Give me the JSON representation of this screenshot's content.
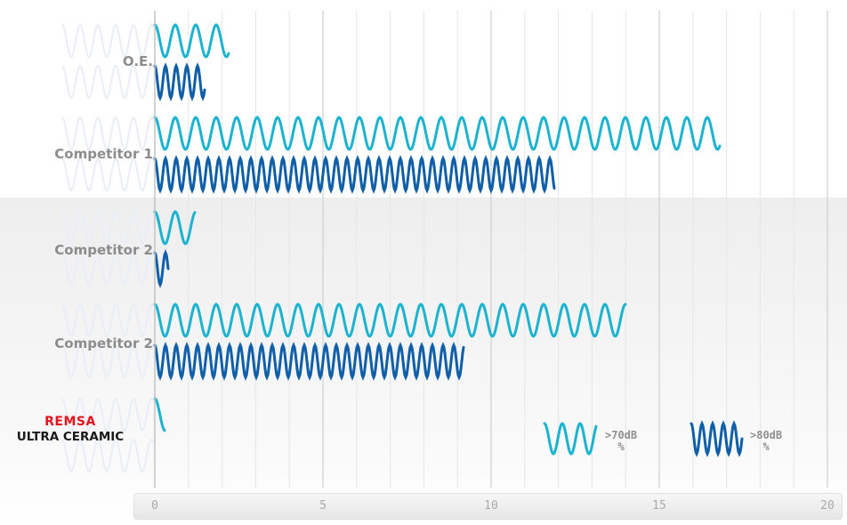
{
  "chart_data": {
    "type": "bar",
    "categories": [
      "O.E.",
      "Competitor 1",
      "Competitor 2",
      "Competitor 2",
      "REMSA ULTRA CERAMIC"
    ],
    "category_labels": [
      "O.E.",
      "Competitor 1",
      "Competitor 2",
      "Competitor 2"
    ],
    "brand": {
      "line1": "REMSA",
      "line2": "ULTRA CERAMIC"
    },
    "series": [
      {
        "name": ">70dB %",
        "color": "#1bb3cf",
        "values": [
          2.2,
          16.8,
          1.2,
          14.0,
          0.3
        ]
      },
      {
        "name": ">80dB %",
        "color": "#0e5ea8",
        "values": [
          1.5,
          11.9,
          0.4,
          9.2,
          0.0
        ]
      }
    ],
    "xlim": [
      0,
      20
    ],
    "xticks": [
      0,
      5,
      10,
      15,
      20
    ],
    "grid": true,
    "legend_position": "bottom-right"
  },
  "legend": {
    "s1_line1": ">70dB",
    "s1_line2": "%",
    "s2_line1": ">80dB",
    "s2_line2": "%"
  },
  "colors": {
    "label_gray": "#8c8c8c",
    "brand_red": "#e3131b",
    "grid": "#dcdcdc",
    "ghost_wave": "#e9eef6"
  }
}
